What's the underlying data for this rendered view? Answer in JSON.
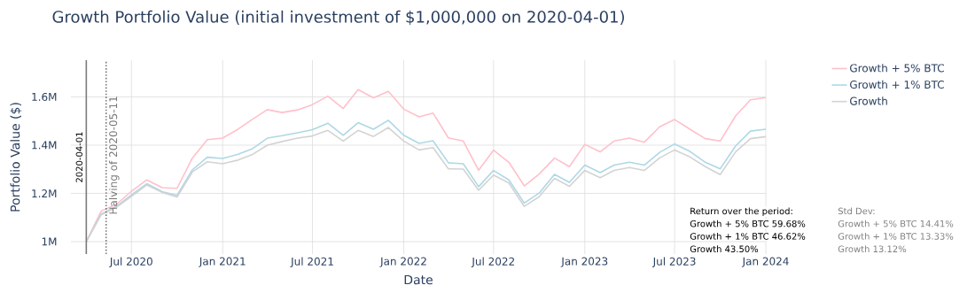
{
  "chart_data": {
    "type": "line",
    "title": "Growth Portfolio Value (initial investment of $1,000,000 on 2020-04-01)",
    "xlabel": "Date",
    "ylabel": "Portfolio Value ($)",
    "x": [
      "2020-04-01",
      "2020-05-01",
      "2020-06-01",
      "2020-07-01",
      "2020-08-01",
      "2020-09-01",
      "2020-10-01",
      "2020-11-01",
      "2020-12-01",
      "2021-01-01",
      "2021-02-01",
      "2021-03-01",
      "2021-04-01",
      "2021-05-01",
      "2021-06-01",
      "2021-07-01",
      "2021-08-01",
      "2021-09-01",
      "2021-10-01",
      "2021-11-01",
      "2021-12-01",
      "2022-01-01",
      "2022-02-01",
      "2022-03-01",
      "2022-04-01",
      "2022-05-01",
      "2022-06-01",
      "2022-07-01",
      "2022-08-01",
      "2022-09-01",
      "2022-10-01",
      "2022-11-01",
      "2022-12-01",
      "2023-01-01",
      "2023-02-01",
      "2023-03-01",
      "2023-04-01",
      "2023-05-01",
      "2023-06-01",
      "2023-07-01",
      "2023-08-01",
      "2023-09-01",
      "2023-10-01",
      "2023-11-01",
      "2023-12-01",
      "2024-01-01"
    ],
    "series": [
      {
        "name": "Growth + 5% BTC",
        "color": "#ffc0cb",
        "values": [
          1000000,
          1127000,
          1155000,
          1209000,
          1256000,
          1224000,
          1221000,
          1347000,
          1423000,
          1429000,
          1466000,
          1506000,
          1547000,
          1535000,
          1546000,
          1568000,
          1603000,
          1552000,
          1630000,
          1596000,
          1623000,
          1549000,
          1517000,
          1533000,
          1430000,
          1417000,
          1296000,
          1379000,
          1329000,
          1231000,
          1280000,
          1346000,
          1311000,
          1403000,
          1372000,
          1417000,
          1429000,
          1412000,
          1476000,
          1506000,
          1466000,
          1427000,
          1417000,
          1521000,
          1588000,
          1597000
        ]
      },
      {
        "name": "Growth + 1% BTC",
        "color": "#add8e6",
        "values": [
          1000000,
          1115000,
          1146000,
          1194000,
          1240000,
          1207000,
          1192000,
          1298000,
          1350000,
          1345000,
          1362000,
          1384000,
          1429000,
          1439000,
          1451000,
          1464000,
          1491000,
          1441000,
          1493000,
          1466000,
          1503000,
          1441000,
          1407000,
          1418000,
          1327000,
          1323000,
          1228000,
          1295000,
          1256000,
          1160000,
          1201000,
          1279000,
          1246000,
          1317000,
          1286000,
          1317000,
          1329000,
          1317000,
          1370000,
          1405000,
          1374000,
          1329000,
          1302000,
          1396000,
          1458000,
          1466000
        ]
      },
      {
        "name": "Growth",
        "color": "#d3d3d3",
        "values": [
          1000000,
          1111000,
          1143000,
          1188000,
          1235000,
          1204000,
          1185000,
          1289000,
          1331000,
          1323000,
          1338000,
          1360000,
          1400000,
          1415000,
          1429000,
          1438000,
          1461000,
          1417000,
          1461000,
          1436000,
          1473000,
          1417000,
          1380000,
          1390000,
          1302000,
          1301000,
          1213000,
          1276000,
          1243000,
          1146000,
          1186000,
          1262000,
          1229000,
          1295000,
          1265000,
          1295000,
          1307000,
          1295000,
          1347000,
          1380000,
          1351000,
          1311000,
          1278000,
          1372000,
          1427000,
          1435000
        ]
      }
    ],
    "xlim": [
      "2020-03-01",
      "2024-01-01"
    ],
    "xticks": [
      {
        "value": "2020-07-01",
        "label": "Jul 2020"
      },
      {
        "value": "2021-01-01",
        "label": "Jan 2021"
      },
      {
        "value": "2021-07-01",
        "label": "Jul 2021"
      },
      {
        "value": "2022-01-01",
        "label": "Jan 2022"
      },
      {
        "value": "2022-07-01",
        "label": "Jul 2022"
      },
      {
        "value": "2023-01-01",
        "label": "Jan 2023"
      },
      {
        "value": "2023-07-01",
        "label": "Jul 2023"
      },
      {
        "value": "2024-01-01",
        "label": "Jan 2024"
      }
    ],
    "ylim": [
      948600,
      1752000
    ],
    "yticks": [
      {
        "value": 1000000,
        "label": "1M"
      },
      {
        "value": 1200000,
        "label": "1.2M"
      },
      {
        "value": 1400000,
        "label": "1.4M"
      },
      {
        "value": 1600000,
        "label": "1.6M"
      }
    ],
    "ref_lines": [
      {
        "axis": "x",
        "value": "2020-04-01",
        "label": "2020-04-01",
        "color": "#7a7a7a",
        "line_style": "solid"
      },
      {
        "axis": "x",
        "value": "2020-05-11",
        "label": "Halving of 2020-05-11",
        "color": "#777777",
        "line_style": "dotted"
      }
    ],
    "annotations": [
      "Return over the period:",
      "Growth + 5% BTC 59.68%",
      "Growth + 1% BTC 46.62%",
      "Growth 43.50%",
      "Std Dev:",
      "Growth + 5% BTC 14.41%",
      "Growth + 1% BTC 13.33%",
      "Growth 13.12%"
    ],
    "grid": true,
    "legend": "right",
    "marker": "none",
    "line_style": "solid"
  }
}
